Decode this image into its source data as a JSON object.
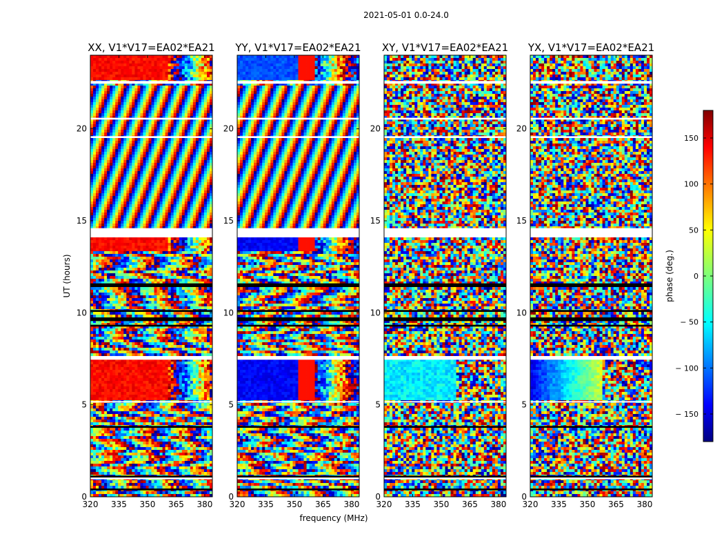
{
  "chart_data": {
    "type": "heatmap",
    "suptitle": "2021-05-01 0.0-24.0",
    "xlabel": "frequency (MHz)",
    "ylabel": "UT (hours)",
    "xlim": [
      320,
      384
    ],
    "ylim": [
      0,
      24
    ],
    "xticks": [
      320,
      335,
      350,
      365,
      380
    ],
    "yticks": [
      0,
      5,
      10,
      15,
      20
    ],
    "panels": [
      {
        "title": "XX, V1*V17=EA02*EA21",
        "pol": "XX"
      },
      {
        "title": "YY, V1*V17=EA02*EA21",
        "pol": "YY"
      },
      {
        "title": "XY, V1*V17=EA02*EA21",
        "pol": "XY"
      },
      {
        "title": "YX, V1*V17=EA02*EA21",
        "pol": "YX"
      }
    ],
    "colorbar": {
      "label": "phase (deg.)",
      "range": [
        -180,
        180
      ],
      "ticks": [
        150,
        100,
        50,
        0,
        -50,
        -100,
        -150
      ],
      "tick_labels": [
        "150",
        "100",
        "50",
        "0",
        "− 50",
        "− 100",
        "− 150"
      ],
      "colormap": "jet",
      "colors": [
        "#000080",
        "#0000ff",
        "#00ffff",
        "#ffff00",
        "#ff0000",
        "#800000"
      ]
    },
    "grid": false
  }
}
